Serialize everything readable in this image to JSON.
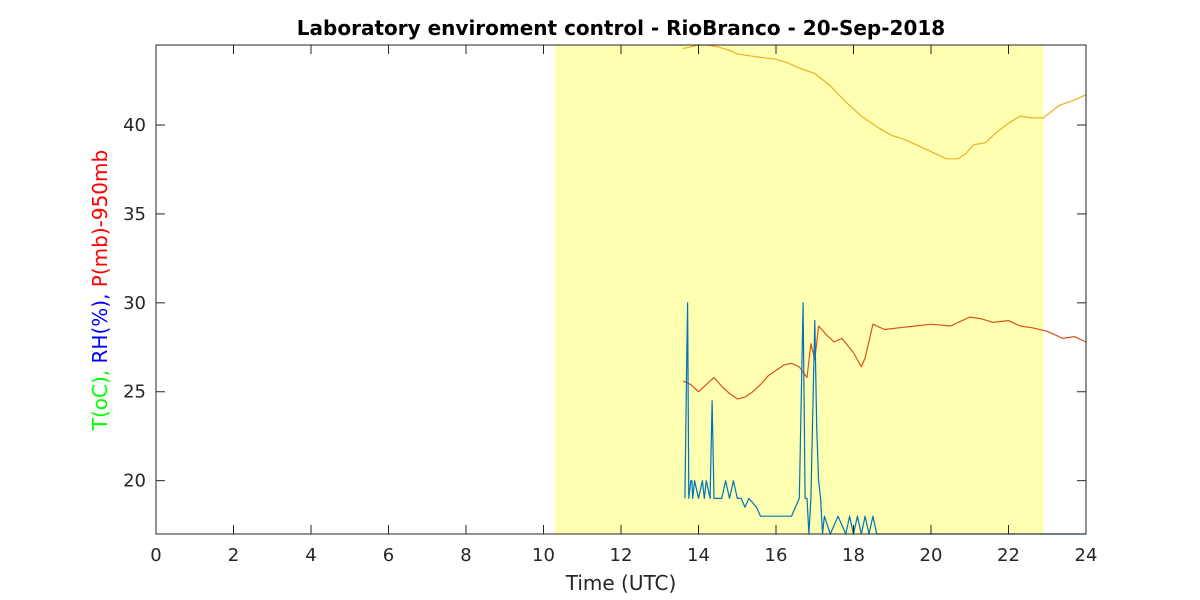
{
  "chart_data": {
    "type": "line",
    "title": "Laboratory enviroment control - RioBranco - 20-Sep-2018",
    "xlabel": "Time (UTC)",
    "ylabel_parts": [
      {
        "text": "T(oC), ",
        "color": "#00ff00"
      },
      {
        "text": "RH(%), ",
        "color": "#0000ff"
      },
      {
        "text": "P(mb)-950mb",
        "color": "#ff0000"
      }
    ],
    "xlim": [
      0,
      24
    ],
    "ylim": [
      17,
      44.5
    ],
    "x_ticks": [
      0,
      2,
      4,
      6,
      8,
      10,
      12,
      14,
      16,
      18,
      20,
      22,
      24
    ],
    "y_ticks": [
      20,
      25,
      30,
      35,
      40
    ],
    "grid": false,
    "highlight_band": {
      "x_start": 10.3,
      "x_end": 22.9,
      "color": "#ffffb2"
    },
    "series": [
      {
        "color": "#edb120",
        "x": [
          13.6,
          13.8,
          14.0,
          14.2,
          14.5,
          14.8,
          15.0,
          15.3,
          15.6,
          16.0,
          16.3,
          16.6,
          17.0,
          17.4,
          17.8,
          18.2,
          18.6,
          19.0,
          19.3,
          20.2,
          20.4,
          20.7,
          20.9,
          21.1,
          21.4,
          21.7,
          22.0,
          22.3,
          22.6,
          22.9,
          23.3,
          23.7,
          24.0
        ],
        "y": [
          44.3,
          44.4,
          44.5,
          44.5,
          44.4,
          44.2,
          44.0,
          43.9,
          43.8,
          43.7,
          43.5,
          43.2,
          42.9,
          42.2,
          41.3,
          40.5,
          39.9,
          39.4,
          39.2,
          38.3,
          38.1,
          38.1,
          38.4,
          38.9,
          39.0,
          39.6,
          40.1,
          40.5,
          40.4,
          40.4,
          41.1,
          41.4,
          41.7
        ]
      },
      {
        "color": "#d95319",
        "x": [
          13.6,
          13.8,
          14.0,
          14.2,
          14.4,
          14.6,
          14.8,
          15.0,
          15.2,
          15.4,
          15.6,
          15.8,
          16.0,
          16.2,
          16.4,
          16.6,
          16.8,
          16.9,
          17.0,
          17.1,
          17.3,
          17.5,
          17.7,
          18.0,
          18.2,
          18.3,
          18.5,
          18.8,
          19.2,
          19.6,
          20.0,
          20.5,
          21.0,
          21.3,
          21.6,
          22.0,
          22.3,
          22.6,
          23.0,
          23.4,
          23.7,
          24.0
        ],
        "y": [
          25.6,
          25.4,
          25.0,
          25.4,
          25.8,
          25.3,
          24.9,
          24.6,
          24.7,
          25.0,
          25.4,
          25.9,
          26.2,
          26.5,
          26.6,
          26.4,
          25.8,
          27.7,
          26.8,
          28.7,
          28.2,
          27.8,
          28.0,
          27.2,
          26.4,
          26.9,
          28.8,
          28.5,
          28.6,
          28.7,
          28.8,
          28.7,
          29.2,
          29.1,
          28.9,
          29.0,
          28.7,
          28.6,
          28.4,
          28.0,
          28.1,
          27.8
        ]
      },
      {
        "color": "#0072bd",
        "x": [
          13.65,
          13.7,
          13.72,
          13.75,
          13.8,
          13.83,
          13.85,
          13.9,
          14.0,
          14.1,
          14.15,
          14.2,
          14.3,
          14.35,
          14.4,
          14.45,
          14.5,
          14.6,
          14.7,
          14.8,
          14.9,
          15.0,
          15.1,
          15.2,
          15.3,
          15.5,
          15.6,
          15.8,
          16.0,
          16.2,
          16.4,
          16.6,
          16.7,
          16.75,
          16.8,
          16.85,
          16.9,
          17.0,
          17.05,
          17.1,
          17.15,
          17.2,
          17.25,
          17.4,
          17.6,
          17.8,
          17.9,
          18.0,
          18.1,
          18.2,
          18.3,
          18.4,
          18.5,
          18.6,
          18.7,
          19.0,
          20.0,
          21.0,
          22.0,
          23.0,
          24.0
        ],
        "y": [
          19.0,
          27.5,
          30.0,
          19.0,
          20.0,
          20.0,
          19.0,
          20.0,
          19.0,
          20.0,
          19.0,
          20.0,
          19.0,
          24.5,
          19.0,
          19.0,
          19.0,
          19.0,
          20.0,
          19.0,
          20.0,
          19.0,
          19.0,
          18.5,
          19.0,
          18.5,
          18.0,
          18.0,
          18.0,
          18.0,
          18.0,
          19.0,
          30.0,
          19.0,
          19.0,
          17.0,
          19.0,
          29.0,
          23.0,
          20.0,
          19.0,
          17.0,
          18.0,
          17.0,
          18.0,
          17.0,
          18.0,
          17.0,
          18.0,
          17.0,
          18.0,
          17.0,
          18.0,
          17.0,
          17.0,
          17.0,
          17.0,
          17.0,
          17.0,
          17.0,
          17.0
        ]
      }
    ]
  }
}
